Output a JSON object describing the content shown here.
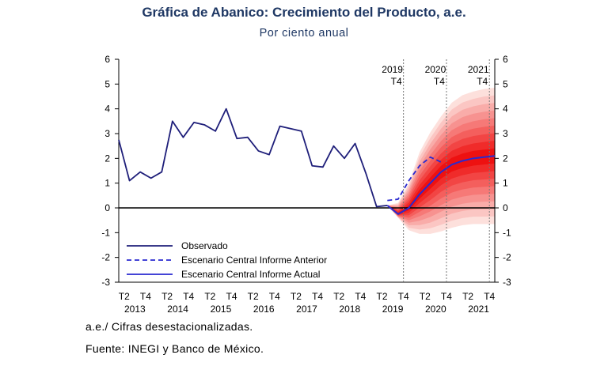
{
  "header": {
    "title": "Gráfica de Abanico: Crecimiento del Producto, a.e.",
    "subtitle": "Por ciento anual"
  },
  "notes": {
    "abbreviation": "a.e./ Cifras desestacionalizadas.",
    "source": "Fuente: INEGI y Banco de México."
  },
  "colors": {
    "observed": "#1f1f7a",
    "scenario": "#2a2ad0",
    "fan_outer": "#fde0dc",
    "fan_inner": "#ee1111",
    "title": "#1f3864"
  },
  "chart_data": {
    "type": "line",
    "title": "Gráfica de Abanico: Crecimiento del Producto, a.e.",
    "subtitle": "Por ciento anual",
    "ylim": [
      -3,
      6
    ],
    "yticks": [
      -3,
      -2,
      -1,
      0,
      1,
      2,
      3,
      4,
      5,
      6
    ],
    "dual_y_axis": true,
    "xlim": [
      0,
      35
    ],
    "x_tick_labels": [
      "T2",
      "T4",
      "T2",
      "T4",
      "T2",
      "T4",
      "T2",
      "T4",
      "T2",
      "T4",
      "T2",
      "T4",
      "T2",
      "T4",
      "T2",
      "T4",
      "T2",
      "T4"
    ],
    "x_tick_positions": [
      0.5,
      2.5,
      4.5,
      6.5,
      8.5,
      10.5,
      12.5,
      14.5,
      16.5,
      18.5,
      20.5,
      22.5,
      24.5,
      26.5,
      28.5,
      30.5,
      32.5,
      34.5
    ],
    "year_labels": [
      "2013",
      "2014",
      "2015",
      "2016",
      "2017",
      "2018",
      "2019",
      "2020",
      "2021"
    ],
    "year_positions": [
      1.5,
      5.5,
      9.5,
      13.5,
      17.5,
      21.5,
      25.5,
      29.5,
      33.5
    ],
    "markers": [
      {
        "label_year": "2019",
        "label_q": "T4",
        "x": 26.5
      },
      {
        "label_year": "2020",
        "label_q": "T4",
        "x": 30.5
      },
      {
        "label_year": "2021",
        "label_q": "T4",
        "x": 34.5
      }
    ],
    "legend": {
      "position": "bottom-left",
      "entries": [
        "Observado",
        "Escenario Central Informe Anterior",
        "Escenario Central Informe Actual"
      ]
    },
    "series": [
      {
        "name": "Observado",
        "style": "solid",
        "x": [
          0,
          1,
          2,
          3,
          4,
          5,
          6,
          7,
          8,
          9,
          10,
          11,
          12,
          13,
          14,
          15,
          16,
          17,
          18,
          19,
          20,
          21,
          22,
          23,
          24,
          25
        ],
        "values": [
          2.75,
          1.1,
          1.45,
          1.2,
          1.45,
          3.5,
          2.85,
          3.45,
          3.35,
          3.1,
          4.0,
          2.8,
          2.85,
          2.3,
          2.15,
          3.3,
          3.2,
          3.1,
          1.7,
          1.65,
          2.5,
          2.0,
          2.6,
          1.4,
          0.05,
          0.1
        ]
      },
      {
        "name": "Escenario Central Informe Anterior",
        "style": "dashed",
        "x": [
          25,
          26,
          27,
          28,
          29,
          30
        ],
        "values": [
          0.3,
          0.35,
          1.1,
          1.7,
          2.05,
          1.85
        ]
      },
      {
        "name": "Escenario Central Informe Actual",
        "style": "solid",
        "x": [
          25,
          26,
          27,
          28,
          29,
          30,
          31,
          32,
          33,
          34,
          35
        ],
        "values": [
          0.1,
          -0.25,
          0.0,
          0.55,
          1.0,
          1.45,
          1.75,
          1.9,
          2.0,
          2.05,
          2.1
        ]
      }
    ],
    "fan": {
      "x": [
        26,
        27,
        28,
        29,
        30,
        31,
        32,
        33,
        34,
        35
      ],
      "outer_upper": [
        0.2,
        1.0,
        2.25,
        3.05,
        3.7,
        4.25,
        4.55,
        4.7,
        4.8,
        4.85
      ],
      "outer_lower": [
        -0.4,
        -0.9,
        -1.05,
        -1.05,
        -0.95,
        -0.8,
        -0.7,
        -0.65,
        -0.65,
        -0.65
      ],
      "bands": 9
    }
  }
}
